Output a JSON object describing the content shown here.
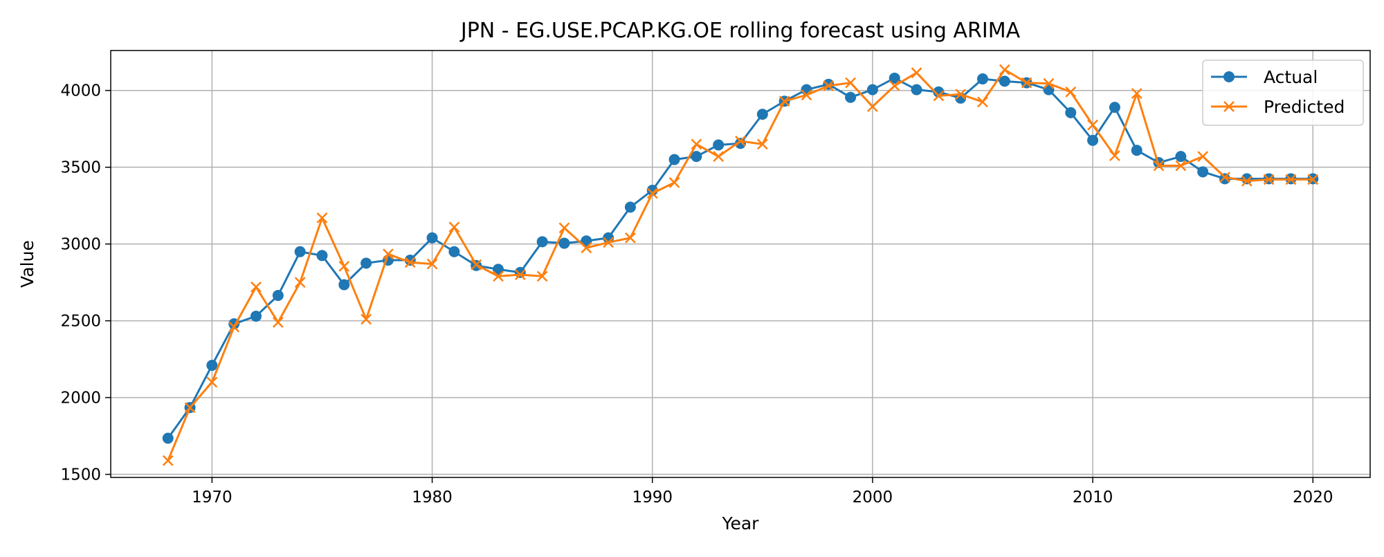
{
  "chart_data": {
    "type": "line",
    "title": "JPN - EG.USE.PCAP.KG.OE rolling forecast using ARIMA",
    "xlabel": "Year",
    "ylabel": "Value",
    "xlim": [
      1965.4,
      2022.6
    ],
    "ylim": [
      1480,
      4260
    ],
    "xticks": [
      1970,
      1980,
      1990,
      2000,
      2010,
      2020
    ],
    "yticks": [
      1500,
      2000,
      2500,
      3000,
      3500,
      4000
    ],
    "grid": true,
    "legend_position": "top-right",
    "x": [
      1968,
      1969,
      1970,
      1971,
      1972,
      1973,
      1974,
      1975,
      1976,
      1977,
      1978,
      1979,
      1980,
      1981,
      1982,
      1983,
      1984,
      1985,
      1986,
      1987,
      1988,
      1989,
      1990,
      1991,
      1992,
      1993,
      1994,
      1995,
      1996,
      1997,
      1998,
      1999,
      2000,
      2001,
      2002,
      2003,
      2004,
      2005,
      2006,
      2007,
      2008,
      2009,
      2010,
      2011,
      2012,
      2013,
      2014,
      2015,
      2016,
      2017,
      2018,
      2019,
      2020
    ],
    "series": [
      {
        "name": "Actual",
        "color": "#1f77b4",
        "marker": "circle",
        "values": [
          1735,
          1935,
          2210,
          2480,
          2530,
          2665,
          2950,
          2925,
          2735,
          2875,
          2895,
          2895,
          3040,
          2950,
          2860,
          2835,
          2815,
          3015,
          3005,
          3020,
          3040,
          3240,
          3350,
          3550,
          3570,
          3645,
          3655,
          3845,
          3930,
          4005,
          4040,
          3955,
          4005,
          4080,
          4005,
          3990,
          3950,
          4075,
          4060,
          4050,
          4005,
          3855,
          3675,
          3890,
          3610,
          3530,
          3570,
          3470,
          3425,
          3425,
          3425,
          3425,
          3425
        ]
      },
      {
        "name": "Predicted",
        "color": "#ff7f0e",
        "marker": "x",
        "values": [
          1590,
          1935,
          2100,
          2460,
          2720,
          2490,
          2750,
          3170,
          2855,
          2510,
          2935,
          2880,
          2870,
          3110,
          2865,
          2790,
          2800,
          2790,
          3105,
          2975,
          3010,
          3040,
          3330,
          3400,
          3650,
          3570,
          3670,
          3650,
          3930,
          3970,
          4030,
          4050,
          3895,
          4030,
          4115,
          3965,
          3975,
          3925,
          4135,
          4050,
          4045,
          3990,
          3775,
          3575,
          3980,
          3510,
          3510,
          3570,
          3435,
          3410,
          3420,
          3420,
          3420
        ]
      }
    ]
  }
}
